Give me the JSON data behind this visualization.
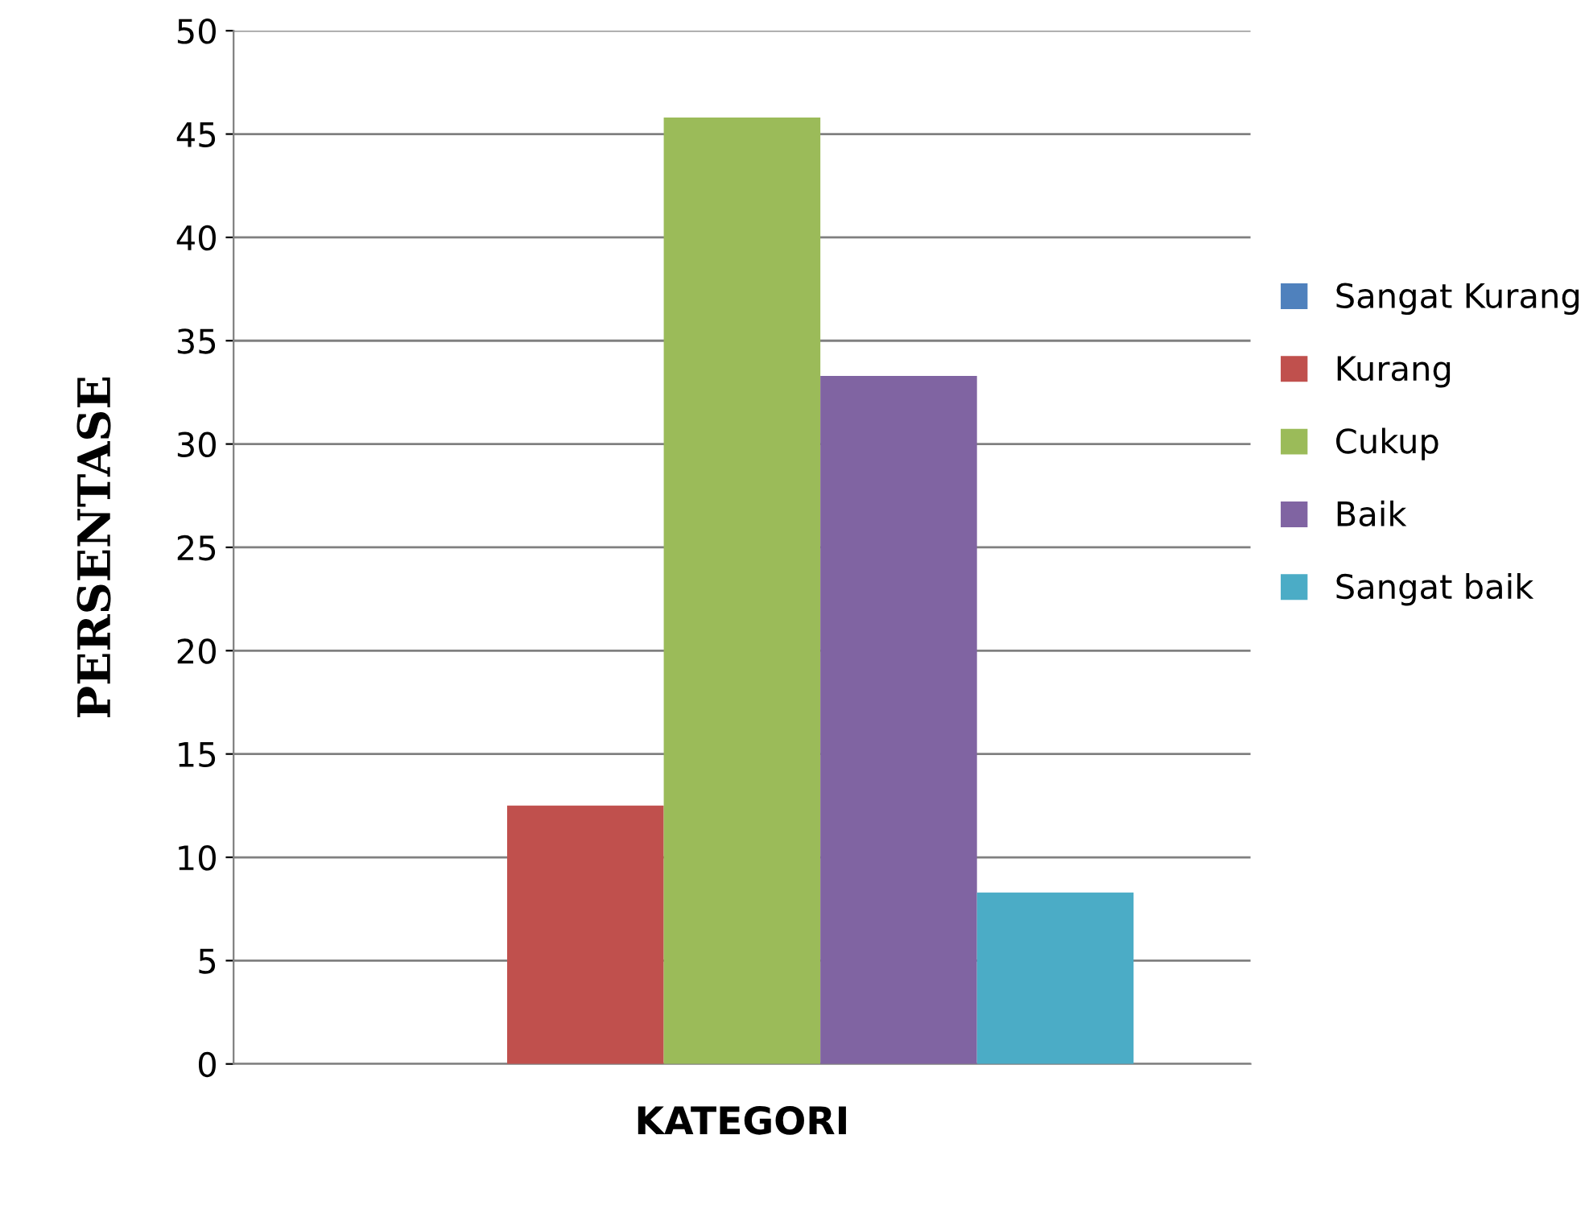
{
  "chart_data": {
    "type": "bar",
    "xlabel": "KATEGORI",
    "ylabel": "PERSENTASE",
    "categories": [
      null
    ],
    "series": [
      {
        "name": "Sangat Kurang",
        "color": "#4f81bd",
        "values": [
          0
        ]
      },
      {
        "name": "Kurang",
        "color": "#c0504d",
        "values": [
          12.5
        ]
      },
      {
        "name": "Cukup",
        "color": "#9bbb59",
        "values": [
          45.8
        ]
      },
      {
        "name": "Baik",
        "color": "#8064a2",
        "values": [
          33.3
        ]
      },
      {
        "name": "Sangat baik",
        "color": "#4bacc6",
        "values": [
          8.3
        ]
      }
    ],
    "ylim": [
      0,
      50
    ],
    "yticks": [
      0,
      5,
      10,
      15,
      20,
      25,
      30,
      35,
      40,
      45,
      50
    ],
    "grid": "y",
    "legend": "right"
  }
}
